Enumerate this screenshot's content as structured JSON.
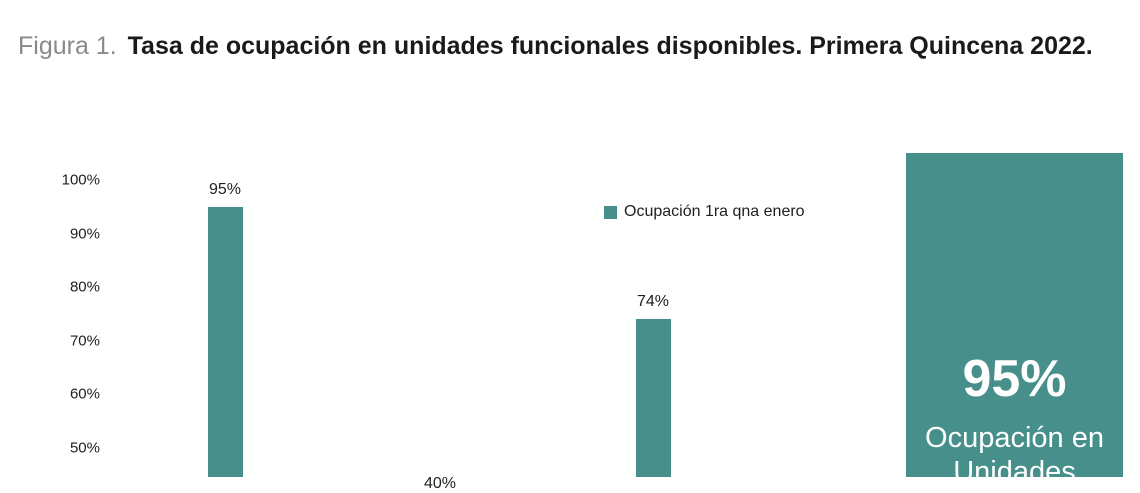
{
  "header": {
    "figure_label": "Figura 1.",
    "title": "Tasa de ocupación en unidades funcionales disponibles. Primera Quincena 2022."
  },
  "colors": {
    "teal": "#468f8a",
    "text": "#1f1f1f"
  },
  "chart_data": {
    "type": "bar",
    "title": "",
    "xlabel": "",
    "ylabel": "",
    "ylim": [
      40,
      100
    ],
    "ytick_labels": [
      "100%",
      "90%",
      "80%",
      "70%",
      "60%",
      "50%"
    ],
    "series": [
      {
        "name": "Ocupación 1ra qna enero",
        "values": [
          95,
          40,
          74
        ]
      }
    ],
    "value_labels": [
      "95%",
      "40%",
      "74%"
    ],
    "legend": {
      "position": "top-right",
      "label": "Ocupación 1ra qna enero"
    }
  },
  "kpi": {
    "value": "95%",
    "caption": "Ocupación en Unidades"
  }
}
